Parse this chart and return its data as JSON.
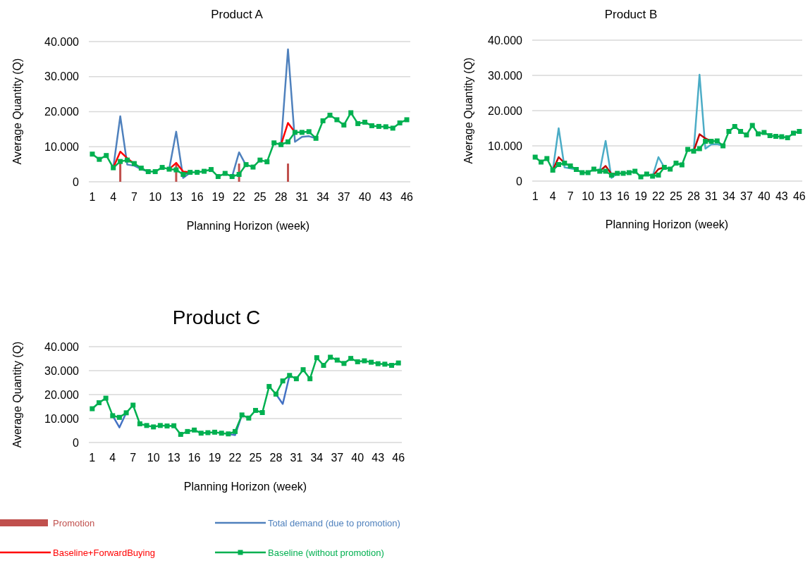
{
  "chart_data": [
    {
      "type": "line",
      "title": "Product A",
      "xlabel": "Planning Horizon (week)",
      "ylabel": "Average Quantity (Q)",
      "categories": [
        "1",
        null,
        null,
        "4",
        null,
        null,
        "7",
        null,
        null,
        "10",
        null,
        null,
        "13",
        null,
        null,
        "16",
        null,
        null,
        "19",
        null,
        null,
        "22",
        null,
        null,
        "25",
        null,
        null,
        "28",
        null,
        null,
        "31",
        null,
        null,
        "34",
        null,
        null,
        "37",
        null,
        null,
        "40",
        null,
        null,
        "43",
        null,
        null,
        "46"
      ],
      "ylim": [
        0,
        40000
      ],
      "yticks": [
        {
          "value": 0,
          "label": "0"
        },
        {
          "value": 10000,
          "label": "10.000"
        },
        {
          "value": 20000,
          "label": "20.000"
        },
        {
          "value": 30000,
          "label": "30.000"
        },
        {
          "value": 40000,
          "label": "40.000"
        }
      ],
      "grid": "y",
      "legend": "bottom",
      "series": [
        {
          "name": "Promotion",
          "type": "bar",
          "color": "#c0504d",
          "values": [
            null,
            null,
            null,
            null,
            5200,
            null,
            null,
            null,
            null,
            null,
            null,
            null,
            5200,
            null,
            null,
            null,
            null,
            null,
            null,
            null,
            null,
            5200,
            null,
            null,
            null,
            null,
            null,
            null,
            5200,
            null,
            null,
            null,
            null,
            null,
            null,
            null,
            null,
            null,
            null,
            null,
            null,
            null,
            null,
            null,
            null,
            null
          ]
        },
        {
          "name": "Total demand (due to promotion)",
          "color": "#4f81bd",
          "values": [
            null,
            null,
            null,
            4000,
            18700,
            4900,
            4600,
            3600,
            2900,
            null,
            null,
            3600,
            14300,
            1100,
            2600,
            null,
            null,
            null,
            null,
            null,
            1500,
            8400,
            4700,
            null,
            null,
            null,
            null,
            10600,
            37800,
            11400,
            12800,
            13000,
            12400,
            null,
            null,
            null,
            null,
            null,
            null,
            null,
            null,
            null,
            null,
            null,
            null,
            null
          ]
        },
        {
          "name": "Baseline+ForwardBuying",
          "color": "#ff0000",
          "values": [
            null,
            null,
            null,
            4000,
            8600,
            6700,
            5200,
            null,
            null,
            null,
            null,
            3600,
            5400,
            2900,
            2700,
            null,
            null,
            null,
            null,
            null,
            null,
            null,
            null,
            null,
            null,
            null,
            null,
            10600,
            16800,
            14100,
            null,
            null,
            null,
            null,
            null,
            null,
            null,
            null,
            null,
            null,
            null,
            null,
            null,
            null,
            null,
            null
          ]
        },
        {
          "name": "Baseline (without promotion)",
          "color": "#00b050",
          "marker": "square",
          "values": [
            7900,
            6400,
            7500,
            4000,
            5800,
            6200,
            5200,
            3900,
            2900,
            2900,
            4100,
            3600,
            3400,
            2100,
            2700,
            2700,
            3000,
            3500,
            1500,
            2400,
            1500,
            2100,
            4900,
            4200,
            6200,
            5700,
            11100,
            10600,
            11400,
            14100,
            14100,
            14300,
            12400,
            17400,
            19000,
            17700,
            16200,
            19700,
            16600,
            17000,
            16000,
            15800,
            15700,
            15300,
            16800,
            17700
          ]
        }
      ]
    },
    {
      "type": "line",
      "title": "Product B",
      "xlabel": "Planning Horizon (week)",
      "ylabel": "Average Quantity (Q)",
      "categories": [
        "1",
        null,
        null,
        "4",
        null,
        null,
        "7",
        null,
        null,
        "10",
        null,
        null,
        "13",
        null,
        null,
        "16",
        null,
        null,
        "19",
        null,
        null,
        "22",
        null,
        null,
        "25",
        null,
        null,
        "28",
        null,
        null,
        "31",
        null,
        null,
        "34",
        null,
        null,
        "37",
        null,
        null,
        "40",
        null,
        null,
        "43",
        null,
        null,
        "46"
      ],
      "ylim": [
        0,
        40000
      ],
      "yticks": [
        0,
        {
          "value": 10000,
          "label": "10.000"
        },
        {
          "value": 20000,
          "label": "20.000"
        },
        {
          "value": 30000,
          "label": "30.000"
        },
        {
          "value": 40000,
          "label": "40.000"
        }
      ],
      "grid": "y",
      "series": [
        {
          "color": "#4bacc6",
          "values": [
            null,
            null,
            null,
            3100,
            15000,
            3900,
            3600,
            3300,
            null,
            null,
            null,
            2800,
            11400,
            900,
            2200,
            null,
            null,
            null,
            null,
            null,
            1400,
            6800,
            3900,
            null,
            null,
            null,
            null,
            8500,
            30200,
            9200,
            10400,
            10500,
            10000,
            null,
            null,
            null,
            null,
            null,
            null,
            null,
            null,
            null,
            null,
            null,
            null,
            null
          ]
        },
        {
          "color": "#c00000",
          "values": [
            null,
            null,
            null,
            3100,
            6800,
            5100,
            null,
            null,
            null,
            null,
            null,
            2800,
            4300,
            2000,
            2200,
            null,
            null,
            null,
            null,
            null,
            1400,
            3400,
            3900,
            null,
            null,
            null,
            null,
            8500,
            13300,
            12100,
            11300,
            null,
            null,
            null,
            null,
            null,
            null,
            null,
            null,
            null,
            null,
            null,
            null,
            null,
            null,
            null
          ]
        },
        {
          "color": "#00b050",
          "marker": "square",
          "values": [
            6800,
            5400,
            6400,
            3100,
            4700,
            5100,
            4300,
            3300,
            2400,
            2400,
            3400,
            2800,
            2800,
            1700,
            2200,
            2200,
            2400,
            2800,
            1200,
            2000,
            1400,
            1700,
            3900,
            3400,
            5100,
            4600,
            9000,
            8500,
            9200,
            11300,
            11300,
            11400,
            10000,
            14100,
            15500,
            14100,
            13100,
            15800,
            13400,
            13800,
            12900,
            12700,
            12600,
            12300,
            13600,
            14100
          ]
        }
      ]
    },
    {
      "type": "line",
      "title": "Product C",
      "xlabel": "Planning Horizon (week)",
      "ylabel": "Average Quantity (Q)",
      "categories": [
        "1",
        null,
        null,
        "4",
        null,
        null,
        "7",
        null,
        null,
        "10",
        null,
        null,
        "13",
        null,
        null,
        "16",
        null,
        null,
        "19",
        null,
        null,
        "22",
        null,
        null,
        "25",
        null,
        null,
        "28",
        null,
        null,
        "31",
        null,
        null,
        "34",
        null,
        null,
        "37",
        null,
        null,
        "40",
        null,
        null,
        "43",
        null,
        null,
        "46"
      ],
      "ylim": [
        0,
        40000
      ],
      "yticks": [
        0,
        {
          "value": 10000,
          "label": "10.000"
        },
        {
          "value": 20000,
          "label": "20.000"
        },
        {
          "value": 30000,
          "label": "30.000"
        },
        {
          "value": 40000,
          "label": "40.000"
        }
      ],
      "grid": "y",
      "series": [
        {
          "color": "#4472c4",
          "values": [
            null,
            null,
            null,
            11200,
            6300,
            12400,
            null,
            null,
            null,
            null,
            null,
            null,
            null,
            null,
            null,
            null,
            null,
            null,
            null,
            null,
            3600,
            3100,
            11500,
            null,
            null,
            null,
            null,
            20200,
            16100,
            28000,
            null,
            null,
            null,
            null,
            null,
            null,
            null,
            null,
            null,
            null,
            null,
            null,
            null,
            null,
            null,
            null
          ]
        },
        {
          "color": "#00b050",
          "marker": "square",
          "values": [
            14100,
            16600,
            18500,
            11200,
            10500,
            12400,
            15600,
            7800,
            7100,
            6500,
            7100,
            6900,
            7000,
            3400,
            4600,
            5200,
            3900,
            4100,
            4300,
            3900,
            3600,
            4600,
            11500,
            10200,
            13400,
            12500,
            23400,
            20200,
            25700,
            28000,
            26600,
            30400,
            26600,
            35400,
            32200,
            35600,
            34400,
            33000,
            35100,
            33700,
            34100,
            33500,
            32900,
            32700,
            32200,
            33200
          ]
        }
      ]
    }
  ]
}
